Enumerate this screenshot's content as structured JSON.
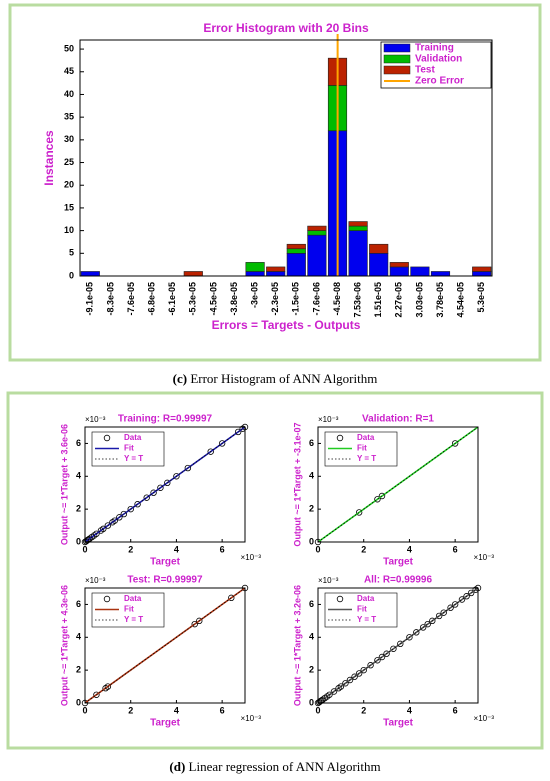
{
  "captions": [
    {
      "label": "(c)",
      "text": "Error Histogram of ANN Algorithm"
    },
    {
      "label": "(d)",
      "text": "Linear regression of ANN Algorithm"
    }
  ],
  "chart_data": [
    {
      "type": "bar",
      "stacked": true,
      "title": "Error Histogram with 20 Bins",
      "x_label": "Errors = Targets - Outputs",
      "y_label": "Instances",
      "categories": [
        "-9.1e-05",
        "-8.3e-05",
        "-7.6e-05",
        "-6.8e-05",
        "-6.1e-05",
        "-5.3e-05",
        "-4.5e-05",
        "-3.8e-05",
        "-3e-05",
        "-2.3e-05",
        "-1.5e-05",
        "-7.6e-06",
        "-4.5e-08",
        "7.53e-06",
        "1.51e-05",
        "2.27e-05",
        "3.03e-05",
        "3.78e-05",
        "4.54e-05",
        "5.3e-05"
      ],
      "series": [
        {
          "name": "Training",
          "color": "#0000ee",
          "values": [
            1,
            0,
            0,
            0,
            0,
            0,
            0,
            0,
            1,
            1,
            5,
            9,
            32,
            10,
            5,
            2,
            2,
            1,
            0,
            1
          ]
        },
        {
          "name": "Validation",
          "color": "#00bb00",
          "values": [
            0,
            0,
            0,
            0,
            0,
            0,
            0,
            0,
            2,
            0,
            1,
            1,
            10,
            1,
            0,
            0,
            0,
            0,
            0,
            0
          ]
        },
        {
          "name": "Test",
          "color": "#bb2200",
          "values": [
            0,
            0,
            0,
            0,
            0,
            1,
            0,
            0,
            0,
            1,
            1,
            1,
            6,
            1,
            2,
            1,
            0,
            0,
            0,
            1
          ]
        }
      ],
      "zero_line": {
        "name": "Zero Error",
        "color": "#ffa500",
        "x": 0
      },
      "ylim": [
        0,
        52
      ],
      "yticks": [
        0,
        5,
        10,
        15,
        20,
        25,
        30,
        35,
        40,
        45,
        50
      ]
    },
    {
      "type": "scatter",
      "title": "Training: R=0.99997",
      "x_label": "Target",
      "y_label": "Output ~= 1*Target + 3.6e-06",
      "x_multiplier": "×10⁻³",
      "y_multiplier": "×10⁻³",
      "xlim": [
        0,
        7
      ],
      "ylim": [
        0,
        7
      ],
      "xticks": [
        0,
        2,
        4,
        6
      ],
      "yticks": [
        0,
        2,
        4,
        6
      ],
      "series": [
        {
          "name": "Data",
          "color": "#000000",
          "marker": "circle",
          "x": [
            0,
            0.05,
            0.1,
            0.15,
            0.2,
            0.3,
            0.4,
            0.5,
            0.7,
            0.8,
            1,
            1.2,
            1.3,
            1.5,
            1.7,
            2,
            2.3,
            2.7,
            3,
            3.3,
            3.6,
            4,
            4.5,
            5.5,
            6,
            6.7,
            6.9,
            7
          ],
          "y": [
            0,
            0.05,
            0.1,
            0.15,
            0.2,
            0.3,
            0.4,
            0.5,
            0.7,
            0.8,
            1,
            1.2,
            1.3,
            1.5,
            1.7,
            2,
            2.3,
            2.7,
            3,
            3.3,
            3.6,
            4,
            4.5,
            5.5,
            6,
            6.7,
            6.9,
            7
          ]
        },
        {
          "name": "Fit",
          "color": "#1a1aaa",
          "style": "solid",
          "x": [
            0,
            7
          ],
          "y": [
            0.0036,
            7
          ]
        },
        {
          "name": "Y = T",
          "color": "#000000",
          "style": "dotted",
          "x": [
            0,
            7
          ],
          "y": [
            0,
            7
          ]
        }
      ]
    },
    {
      "type": "scatter",
      "title": "Validation: R=1",
      "x_label": "Target",
      "y_label": "Output ~= 1*Target + -3.1e-07",
      "x_multiplier": "×10⁻³",
      "y_multiplier": "×10⁻³",
      "xlim": [
        0,
        7
      ],
      "ylim": [
        0,
        7
      ],
      "xticks": [
        0,
        2,
        4,
        6
      ],
      "yticks": [
        0,
        2,
        4,
        6
      ],
      "series": [
        {
          "name": "Data",
          "color": "#000000",
          "marker": "circle",
          "x": [
            0,
            1.8,
            2.6,
            2.8,
            6
          ],
          "y": [
            0,
            1.8,
            2.6,
            2.8,
            6
          ]
        },
        {
          "name": "Fit",
          "color": "#22cc22",
          "style": "solid",
          "x": [
            0,
            7
          ],
          "y": [
            -0.00031,
            7
          ]
        },
        {
          "name": "Y = T",
          "color": "#000000",
          "style": "dotted",
          "x": [
            0,
            7
          ],
          "y": [
            0,
            7
          ]
        }
      ]
    },
    {
      "type": "scatter",
      "title": "Test: R=0.99997",
      "x_label": "Target",
      "y_label": "Output ~= 1*Target + 4.3e-06",
      "x_multiplier": "×10⁻³",
      "y_multiplier": "×10⁻³",
      "xlim": [
        0,
        7
      ],
      "ylim": [
        0,
        7
      ],
      "xticks": [
        0,
        2,
        4,
        6
      ],
      "yticks": [
        0,
        2,
        4,
        6
      ],
      "series": [
        {
          "name": "Data",
          "color": "#000000",
          "marker": "circle",
          "x": [
            0,
            0.5,
            0.9,
            1,
            4.8,
            5,
            6.4,
            7
          ],
          "y": [
            0,
            0.5,
            0.9,
            1,
            4.8,
            5,
            6.4,
            7
          ]
        },
        {
          "name": "Fit",
          "color": "#aa3311",
          "style": "solid",
          "x": [
            0,
            7
          ],
          "y": [
            0.0043,
            7
          ]
        },
        {
          "name": "Y = T",
          "color": "#000000",
          "style": "dotted",
          "x": [
            0,
            7
          ],
          "y": [
            0,
            7
          ]
        }
      ]
    },
    {
      "type": "scatter",
      "title": "All: R=0.99996",
      "x_label": "Target",
      "y_label": "Output ~= 1*Target + 3.2e-06",
      "x_multiplier": "×10⁻³",
      "y_multiplier": "×10⁻³",
      "xlim": [
        0,
        7
      ],
      "ylim": [
        0,
        7
      ],
      "xticks": [
        0,
        2,
        4,
        6
      ],
      "yticks": [
        0,
        2,
        4,
        6
      ],
      "series": [
        {
          "name": "Data",
          "color": "#000000",
          "marker": "circle",
          "x": [
            0,
            0.05,
            0.1,
            0.15,
            0.2,
            0.3,
            0.4,
            0.5,
            0.7,
            0.9,
            1,
            1.2,
            1.4,
            1.6,
            1.8,
            2,
            2.3,
            2.6,
            2.8,
            3,
            3.3,
            3.6,
            4,
            4.3,
            4.6,
            4.8,
            5,
            5.3,
            5.5,
            5.8,
            6,
            6.3,
            6.5,
            6.7,
            6.9,
            7
          ],
          "y": [
            0,
            0.05,
            0.1,
            0.15,
            0.2,
            0.3,
            0.4,
            0.5,
            0.7,
            0.9,
            1,
            1.2,
            1.4,
            1.6,
            1.8,
            2,
            2.3,
            2.6,
            2.8,
            3,
            3.3,
            3.6,
            4,
            4.3,
            4.6,
            4.8,
            5,
            5.3,
            5.5,
            5.8,
            6,
            6.3,
            6.5,
            6.7,
            6.9,
            7
          ]
        },
        {
          "name": "Fit",
          "color": "#555555",
          "style": "solid",
          "x": [
            0,
            7
          ],
          "y": [
            0.0032,
            7
          ]
        },
        {
          "name": "Y = T",
          "color": "#000000",
          "style": "dotted",
          "x": [
            0,
            7
          ],
          "y": [
            0,
            7
          ]
        }
      ]
    }
  ]
}
